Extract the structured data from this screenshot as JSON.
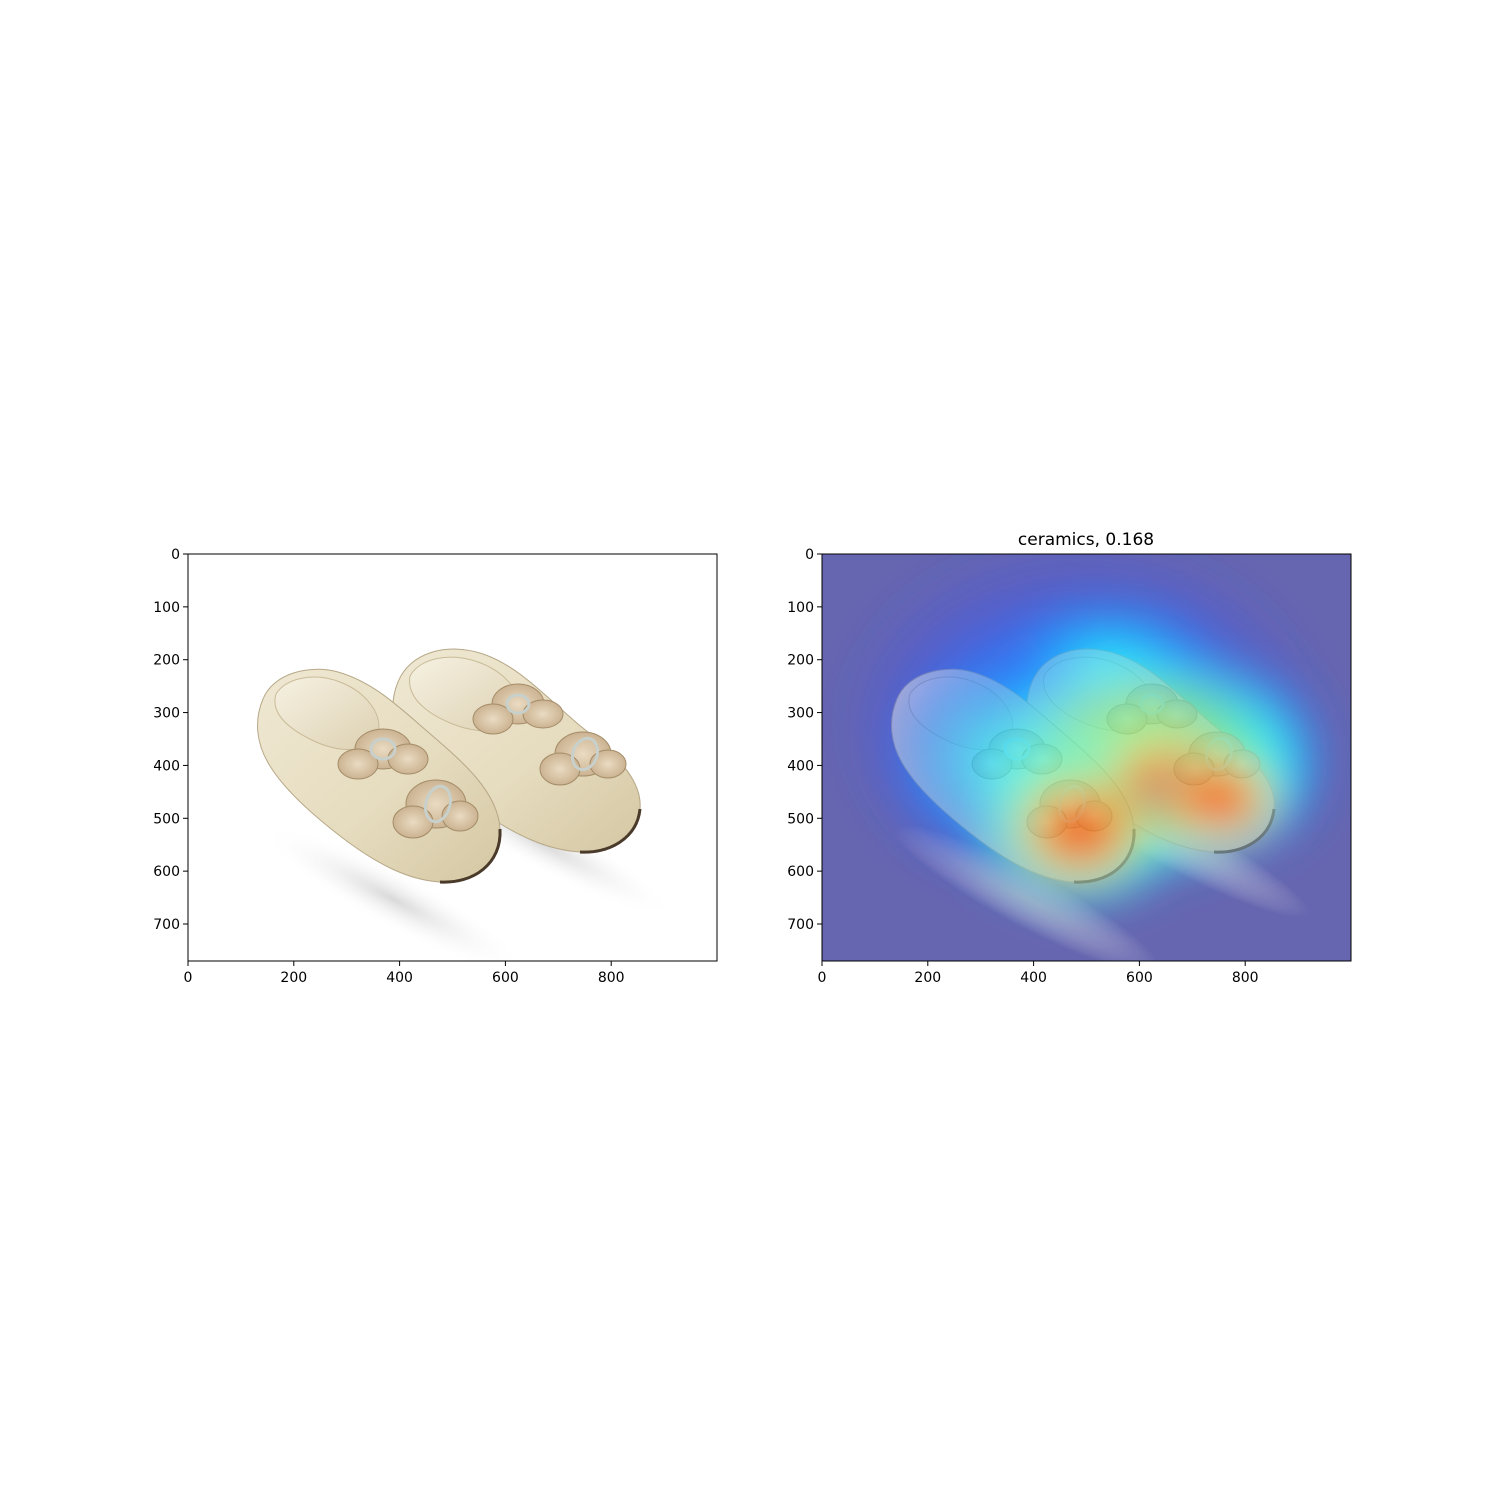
{
  "figure": {
    "background": "#ffffff"
  },
  "panels": [
    {
      "id": "original",
      "title": "",
      "image": "pair of cream silk children's shoes with ribbon bows and oval buckles on white background",
      "xlim": [
        0,
        1000
      ],
      "ylim": [
        770,
        0
      ],
      "xticks": [
        {
          "value": 0,
          "label": "0"
        },
        {
          "value": 200,
          "label": "200"
        },
        {
          "value": 400,
          "label": "400"
        },
        {
          "value": 600,
          "label": "600"
        },
        {
          "value": 800,
          "label": "800"
        }
      ],
      "yticks": [
        {
          "value": 0,
          "label": "0"
        },
        {
          "value": 100,
          "label": "100"
        },
        {
          "value": 200,
          "label": "200"
        },
        {
          "value": 300,
          "label": "300"
        },
        {
          "value": 400,
          "label": "400"
        },
        {
          "value": 500,
          "label": "500"
        },
        {
          "value": 600,
          "label": "600"
        },
        {
          "value": 700,
          "label": "700"
        }
      ]
    },
    {
      "id": "heatmap",
      "title": "ceramics, 0.168",
      "image": "same shoes overlaid with jet-colormap class activation heatmap, hottest (red) over the toes of both shoes",
      "xlim": [
        0,
        1000
      ],
      "ylim": [
        770,
        0
      ],
      "xticks": [
        {
          "value": 0,
          "label": "0"
        },
        {
          "value": 200,
          "label": "200"
        },
        {
          "value": 400,
          "label": "400"
        },
        {
          "value": 600,
          "label": "600"
        },
        {
          "value": 800,
          "label": "800"
        }
      ],
      "yticks": [
        {
          "value": 0,
          "label": "0"
        },
        {
          "value": 100,
          "label": "100"
        },
        {
          "value": 200,
          "label": "200"
        },
        {
          "value": 300,
          "label": "300"
        },
        {
          "value": 400,
          "label": "400"
        },
        {
          "value": 500,
          "label": "500"
        },
        {
          "value": 600,
          "label": "600"
        },
        {
          "value": 700,
          "label": "700"
        }
      ],
      "colormap": [
        "#00007f",
        "#0000ff",
        "#00ffff",
        "#ffff00",
        "#ff0000"
      ]
    }
  ]
}
